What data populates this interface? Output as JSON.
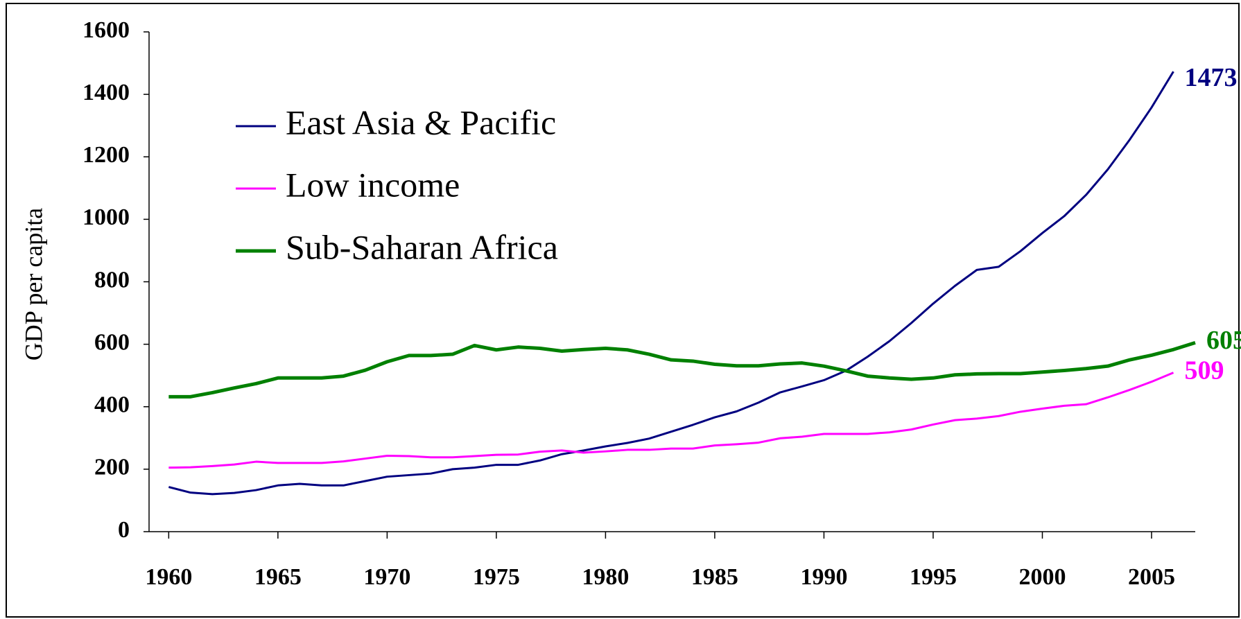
{
  "chart_data": {
    "type": "line",
    "ylabel": "GDP per capita",
    "x": [
      1960,
      1961,
      1962,
      1963,
      1964,
      1965,
      1966,
      1967,
      1968,
      1969,
      1970,
      1971,
      1972,
      1973,
      1974,
      1975,
      1976,
      1977,
      1978,
      1979,
      1980,
      1981,
      1982,
      1983,
      1984,
      1985,
      1986,
      1987,
      1988,
      1989,
      1990,
      1991,
      1992,
      1993,
      1994,
      1995,
      1996,
      1997,
      1998,
      1999,
      2000,
      2001,
      2002,
      2003,
      2004,
      2005,
      2006,
      2007
    ],
    "series": [
      {
        "name": "East Asia & Pacific",
        "color": "#000080",
        "width": 3,
        "values": [
          143,
          125,
          120,
          124,
          133,
          148,
          153,
          148,
          148,
          162,
          176,
          181,
          186,
          200,
          205,
          214,
          214,
          228,
          248,
          260,
          273,
          284,
          298,
          320,
          342,
          366,
          385,
          413,
          446,
          465,
          485,
          515,
          560,
          610,
          668,
          730,
          787,
          838,
          848,
          898,
          956,
          1010,
          1078,
          1160,
          1255,
          1358,
          1473,
          null
        ]
      },
      {
        "name": "Low income",
        "color": "#ff00ff",
        "width": 3,
        "values": [
          205,
          206,
          210,
          215,
          224,
          220,
          220,
          220,
          225,
          234,
          243,
          242,
          238,
          238,
          242,
          246,
          247,
          256,
          260,
          253,
          257,
          262,
          262,
          266,
          266,
          276,
          280,
          285,
          299,
          304,
          313,
          313,
          313,
          318,
          327,
          343,
          357,
          362,
          370,
          384,
          394,
          403,
          408,
          430,
          454,
          480,
          509,
          null
        ]
      },
      {
        "name": "Sub-Saharan Africa",
        "color": "#008000",
        "width": 5,
        "values": [
          432,
          432,
          445,
          460,
          474,
          492,
          492,
          492,
          498,
          517,
          544,
          564,
          564,
          568,
          596,
          582,
          591,
          587,
          578,
          583,
          587,
          582,
          568,
          550,
          546,
          536,
          531,
          531,
          537,
          540,
          530,
          515,
          498,
          492,
          488,
          492,
          502,
          505,
          506,
          506,
          511,
          516,
          522,
          530,
          550,
          565,
          583,
          605
        ]
      }
    ],
    "xlim": [
      1959.1,
      2007
    ],
    "xticks": [
      1960,
      1965,
      1970,
      1975,
      1980,
      1985,
      1990,
      1995,
      2000,
      2005
    ],
    "ylim": [
      0,
      1600
    ],
    "yticks": [
      0,
      200,
      400,
      600,
      800,
      1000,
      1200,
      1400,
      1600
    ]
  }
}
